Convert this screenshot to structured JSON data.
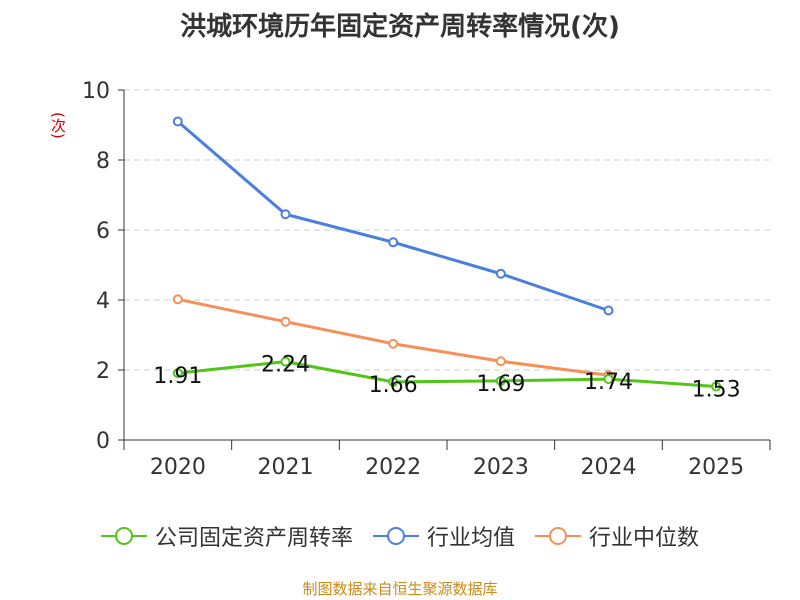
{
  "chart_data": {
    "type": "line",
    "title": "洪城环境历年固定资产周转率情况(次)",
    "ylabel": "(次)",
    "xlabel": "",
    "categories": [
      "2020",
      "2021",
      "2022",
      "2023",
      "2024",
      "2025"
    ],
    "ylim": [
      0,
      10
    ],
    "yticks": [
      0,
      2,
      4,
      6,
      8,
      10
    ],
    "grid": true,
    "legend_position": "bottom",
    "series": [
      {
        "name": "公司固定资产周转率",
        "color": "#52c41a",
        "values": [
          1.91,
          2.24,
          1.66,
          1.69,
          1.74,
          1.53
        ],
        "labels": [
          "1.91",
          "2.24",
          "1.66",
          "1.69",
          "1.74",
          "1.53"
        ]
      },
      {
        "name": "行业均值",
        "color": "#4a7fdc",
        "values": [
          9.1,
          6.45,
          5.65,
          4.75,
          3.7,
          null
        ]
      },
      {
        "name": "行业中位数",
        "color": "#f5905a",
        "values": [
          4.02,
          3.38,
          2.75,
          2.25,
          1.85,
          null
        ]
      }
    ]
  },
  "source": "制图数据来自恒生聚源数据库"
}
